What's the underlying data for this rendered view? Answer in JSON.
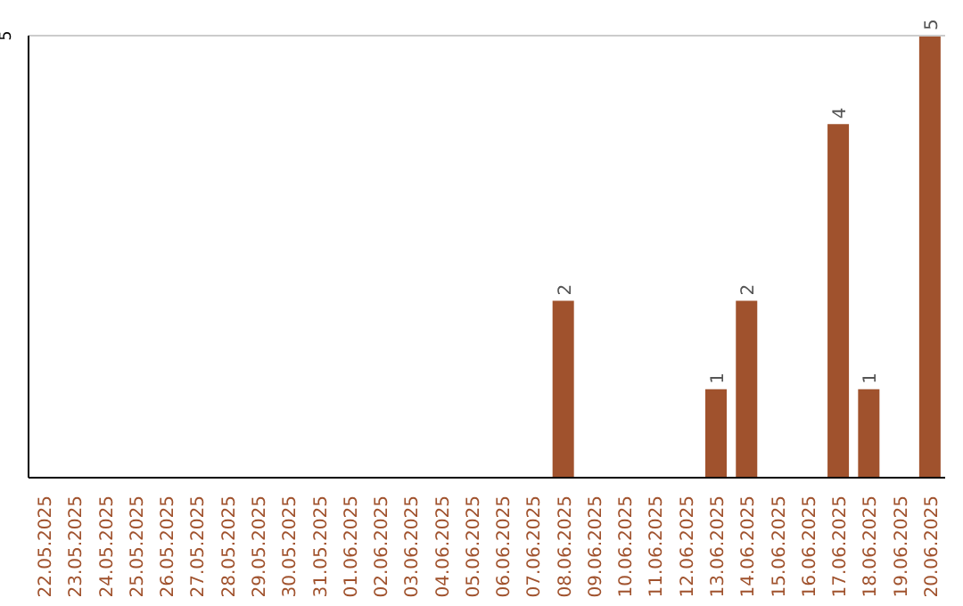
{
  "chart_data": {
    "type": "bar",
    "categories": [
      "22.05.2025",
      "23.05.2025",
      "24.05.2025",
      "25.05.2025",
      "26.05.2025",
      "27.05.2025",
      "28.05.2025",
      "29.05.2025",
      "30.05.2025",
      "31.05.2025",
      "01.06.2025",
      "02.06.2025",
      "03.06.2025",
      "04.06.2025",
      "05.06.2025",
      "06.06.2025",
      "07.06.2025",
      "08.06.2025",
      "09.06.2025",
      "10.06.2025",
      "11.06.2025",
      "12.06.2025",
      "13.06.2025",
      "14.06.2025",
      "15.06.2025",
      "16.06.2025",
      "17.06.2025",
      "18.06.2025",
      "19.06.2025",
      "20.06.2025"
    ],
    "values": [
      null,
      null,
      null,
      null,
      null,
      null,
      null,
      null,
      null,
      null,
      null,
      null,
      null,
      null,
      null,
      null,
      null,
      2,
      null,
      null,
      null,
      null,
      1,
      2,
      null,
      null,
      4,
      1,
      null,
      5
    ],
    "data_labels": true,
    "color": "#a0522d",
    "ylim": [
      0,
      5
    ],
    "yticks": [
      5
    ],
    "ref_lines": [
      {
        "axis": "y",
        "value": 5,
        "color": "#cccccc"
      }
    ]
  }
}
